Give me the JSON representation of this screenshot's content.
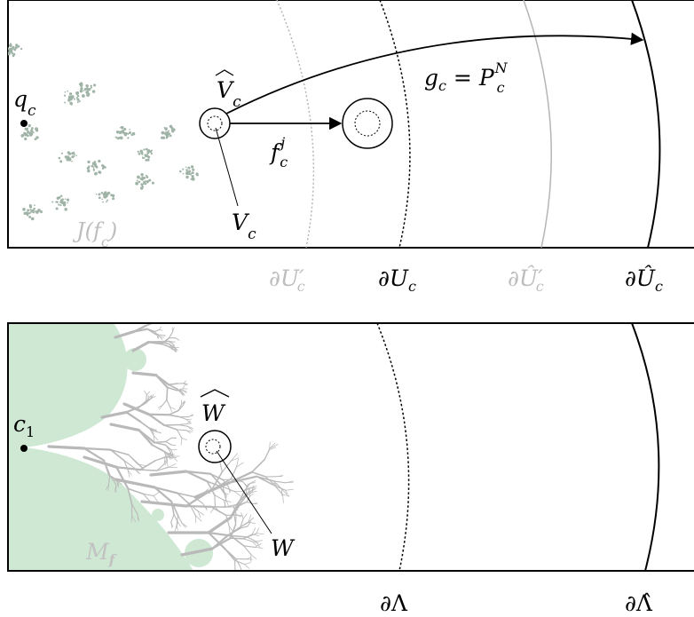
{
  "top_panel": {
    "labels": {
      "q_c": "q",
      "q_c_sub": "c",
      "julia": "J(f",
      "julia_sub": "c",
      "julia_close": ")",
      "v_hat": "V",
      "v_hat_sub": "c",
      "v": "V",
      "v_sub": "c",
      "f_c": "f",
      "f_c_sup": "j",
      "f_c_sub": "c",
      "g_c_lhs": "g",
      "g_c_lhs_sub": "c",
      "g_c_eq": " = ",
      "g_c_rhs": "P",
      "g_c_rhs_sup": "N",
      "g_c_rhs_sub": "c"
    },
    "boundaries": {
      "u_prime": "∂U′",
      "u_prime_sub": "c",
      "u": "∂U",
      "u_sub": "c",
      "u_hat_prime": "∂Û′",
      "u_hat_prime_sub": "c",
      "u_hat": "∂Û",
      "u_hat_sub": "c"
    }
  },
  "bottom_panel": {
    "labels": {
      "c1": "c",
      "c1_sub": "1",
      "w_hat": "W",
      "w": "W",
      "mandel": "M",
      "mandel_sub": "f"
    },
    "boundaries": {
      "lambda": "∂Λ",
      "lambda_hat": "∂Λ̂"
    }
  },
  "colors": {
    "julia_gray_green": "#9fb3a6",
    "mandel_fill": "#cfe8d4",
    "mandel_dendrite": "#b9b9b9",
    "faded_label": "#bdbdbd",
    "frame": "#000000"
  }
}
